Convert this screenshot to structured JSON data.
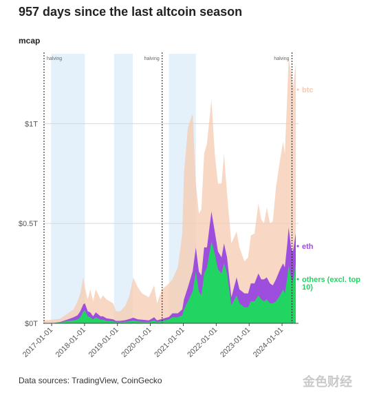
{
  "title": "957 days since the last altcoin season",
  "source": "Data sources: TradingView, CoinGecko",
  "watermark": "金色财经",
  "chart_data": {
    "type": "area",
    "title": "957 days since the last altcoin season",
    "ylabel": "mcap",
    "ylim": [
      0,
      1.35
    ],
    "y_ticks": [
      {
        "v": 0,
        "label": "$0T"
      },
      {
        "v": 0.5,
        "label": "$0.5T"
      },
      {
        "v": 1,
        "label": "$1T"
      }
    ],
    "x_ticks": [
      "2017-01-01",
      "2018-01-01",
      "2019-01-01",
      "2020-01-01",
      "2021-01-01",
      "2022-01-01",
      "2023-01-01",
      "2024-01-01"
    ],
    "xlim": [
      "2016-10-01",
      "2024-06-01"
    ],
    "grid": "horizontal",
    "stacking": "cumulative",
    "altcoin_seasons": [
      {
        "start": "2016-12-25",
        "end": "2018-01-05"
      },
      {
        "start": "2018-11-25",
        "end": "2019-06-20"
      },
      {
        "start": "2020-07-25",
        "end": "2021-05-20"
      }
    ],
    "halvings": [
      {
        "date": "2016-07-09",
        "label": "halving"
      },
      {
        "date": "2020-05-11",
        "label": "halving"
      },
      {
        "date": "2024-04-20",
        "label": "halving"
      }
    ],
    "series": [
      {
        "name": "btc",
        "color": "#f6c9b0",
        "points": [
          [
            "2016-10-01",
            0.014
          ],
          [
            "2017-01-01",
            0.018
          ],
          [
            "2017-04-01",
            0.022
          ],
          [
            "2017-07-01",
            0.05
          ],
          [
            "2017-09-01",
            0.07
          ],
          [
            "2017-10-15",
            0.11
          ],
          [
            "2017-11-15",
            0.15
          ],
          [
            "2017-12-18",
            0.23
          ],
          [
            "2018-01-05",
            0.18
          ],
          [
            "2018-02-06",
            0.12
          ],
          [
            "2018-03-05",
            0.17
          ],
          [
            "2018-04-06",
            0.11
          ],
          [
            "2018-05-05",
            0.17
          ],
          [
            "2018-06-28",
            0.12
          ],
          [
            "2018-07-25",
            0.14
          ],
          [
            "2018-09-01",
            0.12
          ],
          [
            "2018-11-15",
            0.1
          ],
          [
            "2018-12-15",
            0.06
          ],
          [
            "2019-02-01",
            0.06
          ],
          [
            "2019-04-01",
            0.09
          ],
          [
            "2019-05-15",
            0.14
          ],
          [
            "2019-06-26",
            0.23
          ],
          [
            "2019-08-15",
            0.18
          ],
          [
            "2019-10-01",
            0.15
          ],
          [
            "2019-12-15",
            0.13
          ],
          [
            "2020-02-12",
            0.19
          ],
          [
            "2020-03-15",
            0.1
          ],
          [
            "2020-05-10",
            0.17
          ],
          [
            "2020-07-25",
            0.2
          ],
          [
            "2020-09-01",
            0.22
          ],
          [
            "2020-11-01",
            0.28
          ],
          [
            "2020-12-20",
            0.45
          ],
          [
            "2021-01-08",
            0.75
          ],
          [
            "2021-02-20",
            0.98
          ],
          [
            "2021-04-14",
            1.05
          ],
          [
            "2021-05-20",
            0.7
          ],
          [
            "2021-06-22",
            0.55
          ],
          [
            "2021-07-20",
            0.57
          ],
          [
            "2021-08-20",
            0.85
          ],
          [
            "2021-09-20",
            0.9
          ],
          [
            "2021-11-09",
            1.12
          ],
          [
            "2021-12-15",
            0.85
          ],
          [
            "2022-01-20",
            0.7
          ],
          [
            "2022-03-01",
            0.7
          ],
          [
            "2022-03-28",
            0.85
          ],
          [
            "2022-05-01",
            0.65
          ],
          [
            "2022-06-18",
            0.4
          ],
          [
            "2022-08-15",
            0.46
          ],
          [
            "2022-09-15",
            0.38
          ],
          [
            "2022-11-10",
            0.31
          ],
          [
            "2022-12-20",
            0.33
          ],
          [
            "2023-01-20",
            0.44
          ],
          [
            "2023-03-01",
            0.45
          ],
          [
            "2023-04-14",
            0.6
          ],
          [
            "2023-05-15",
            0.52
          ],
          [
            "2023-06-15",
            0.5
          ],
          [
            "2023-07-15",
            0.58
          ],
          [
            "2023-08-20",
            0.5
          ],
          [
            "2023-09-20",
            0.51
          ],
          [
            "2023-10-25",
            0.68
          ],
          [
            "2023-12-10",
            0.82
          ],
          [
            "2024-01-12",
            0.91
          ],
          [
            "2024-02-01",
            0.85
          ],
          [
            "2024-02-28",
            1.15
          ],
          [
            "2024-03-14",
            1.33
          ],
          [
            "2024-04-13",
            1.25
          ],
          [
            "2024-05-01",
            1.18
          ],
          [
            "2024-06-01",
            1.3
          ]
        ]
      },
      {
        "name": "eth",
        "color": "#9d4edd",
        "points": [
          [
            "2016-10-01",
            0.0
          ],
          [
            "2017-01-01",
            0.0
          ],
          [
            "2017-04-01",
            0.006
          ],
          [
            "2017-07-01",
            0.02
          ],
          [
            "2017-09-01",
            0.03
          ],
          [
            "2017-10-15",
            0.04
          ],
          [
            "2017-11-15",
            0.06
          ],
          [
            "2017-12-18",
            0.095
          ],
          [
            "2018-01-05",
            0.1
          ],
          [
            "2018-02-06",
            0.06
          ],
          [
            "2018-03-05",
            0.055
          ],
          [
            "2018-04-06",
            0.035
          ],
          [
            "2018-05-05",
            0.055
          ],
          [
            "2018-06-28",
            0.035
          ],
          [
            "2018-07-25",
            0.035
          ],
          [
            "2018-09-01",
            0.025
          ],
          [
            "2018-11-15",
            0.02
          ],
          [
            "2018-12-15",
            0.012
          ],
          [
            "2019-02-01",
            0.012
          ],
          [
            "2019-04-01",
            0.016
          ],
          [
            "2019-05-15",
            0.022
          ],
          [
            "2019-06-26",
            0.028
          ],
          [
            "2019-08-15",
            0.02
          ],
          [
            "2019-10-01",
            0.018
          ],
          [
            "2019-12-15",
            0.015
          ],
          [
            "2020-02-12",
            0.03
          ],
          [
            "2020-03-15",
            0.015
          ],
          [
            "2020-05-10",
            0.022
          ],
          [
            "2020-07-25",
            0.032
          ],
          [
            "2020-09-01",
            0.05
          ],
          [
            "2020-11-01",
            0.05
          ],
          [
            "2020-12-20",
            0.07
          ],
          [
            "2021-01-08",
            0.12
          ],
          [
            "2021-02-20",
            0.18
          ],
          [
            "2021-04-14",
            0.26
          ],
          [
            "2021-05-20",
            0.38
          ],
          [
            "2021-06-22",
            0.26
          ],
          [
            "2021-07-20",
            0.24
          ],
          [
            "2021-08-20",
            0.38
          ],
          [
            "2021-09-20",
            0.38
          ],
          [
            "2021-11-09",
            0.56
          ],
          [
            "2021-12-15",
            0.46
          ],
          [
            "2022-01-20",
            0.36
          ],
          [
            "2022-03-01",
            0.33
          ],
          [
            "2022-03-28",
            0.4
          ],
          [
            "2022-05-01",
            0.33
          ],
          [
            "2022-06-18",
            0.13
          ],
          [
            "2022-08-15",
            0.23
          ],
          [
            "2022-09-15",
            0.17
          ],
          [
            "2022-11-10",
            0.15
          ],
          [
            "2022-12-20",
            0.15
          ],
          [
            "2023-01-20",
            0.2
          ],
          [
            "2023-03-01",
            0.2
          ],
          [
            "2023-04-14",
            0.25
          ],
          [
            "2023-05-15",
            0.22
          ],
          [
            "2023-06-15",
            0.22
          ],
          [
            "2023-07-15",
            0.23
          ],
          [
            "2023-08-20",
            0.2
          ],
          [
            "2023-09-20",
            0.19
          ],
          [
            "2023-10-25",
            0.22
          ],
          [
            "2023-12-10",
            0.27
          ],
          [
            "2024-01-12",
            0.3
          ],
          [
            "2024-02-01",
            0.28
          ],
          [
            "2024-02-28",
            0.4
          ],
          [
            "2024-03-14",
            0.48
          ],
          [
            "2024-04-13",
            0.37
          ],
          [
            "2024-05-01",
            0.36
          ],
          [
            "2024-06-01",
            0.45
          ]
        ]
      },
      {
        "name": "others (excl. top 10)",
        "color": "#22d462",
        "points": [
          [
            "2016-10-01",
            0.0
          ],
          [
            "2017-01-01",
            0.0
          ],
          [
            "2017-04-01",
            0.004
          ],
          [
            "2017-07-01",
            0.012
          ],
          [
            "2017-09-01",
            0.015
          ],
          [
            "2017-10-15",
            0.02
          ],
          [
            "2017-11-15",
            0.03
          ],
          [
            "2017-12-18",
            0.06
          ],
          [
            "2018-01-05",
            0.065
          ],
          [
            "2018-02-06",
            0.035
          ],
          [
            "2018-03-05",
            0.03
          ],
          [
            "2018-04-06",
            0.02
          ],
          [
            "2018-05-05",
            0.03
          ],
          [
            "2018-06-28",
            0.018
          ],
          [
            "2018-07-25",
            0.018
          ],
          [
            "2018-09-01",
            0.012
          ],
          [
            "2018-11-15",
            0.01
          ],
          [
            "2018-12-15",
            0.006
          ],
          [
            "2019-02-01",
            0.006
          ],
          [
            "2019-04-01",
            0.008
          ],
          [
            "2019-05-15",
            0.01
          ],
          [
            "2019-06-26",
            0.014
          ],
          [
            "2019-08-15",
            0.01
          ],
          [
            "2019-10-01",
            0.008
          ],
          [
            "2019-12-15",
            0.007
          ],
          [
            "2020-02-12",
            0.015
          ],
          [
            "2020-03-15",
            0.007
          ],
          [
            "2020-05-10",
            0.011
          ],
          [
            "2020-07-25",
            0.02
          ],
          [
            "2020-09-01",
            0.03
          ],
          [
            "2020-11-01",
            0.03
          ],
          [
            "2020-12-20",
            0.04
          ],
          [
            "2021-01-08",
            0.07
          ],
          [
            "2021-02-20",
            0.11
          ],
          [
            "2021-04-14",
            0.16
          ],
          [
            "2021-05-20",
            0.26
          ],
          [
            "2021-06-22",
            0.16
          ],
          [
            "2021-07-20",
            0.14
          ],
          [
            "2021-08-20",
            0.25
          ],
          [
            "2021-09-20",
            0.28
          ],
          [
            "2021-11-09",
            0.41
          ],
          [
            "2021-12-15",
            0.35
          ],
          [
            "2022-01-20",
            0.27
          ],
          [
            "2022-03-01",
            0.25
          ],
          [
            "2022-03-28",
            0.3
          ],
          [
            "2022-05-01",
            0.25
          ],
          [
            "2022-06-18",
            0.09
          ],
          [
            "2022-08-15",
            0.14
          ],
          [
            "2022-09-15",
            0.1
          ],
          [
            "2022-11-10",
            0.08
          ],
          [
            "2022-12-20",
            0.08
          ],
          [
            "2023-01-20",
            0.11
          ],
          [
            "2023-03-01",
            0.11
          ],
          [
            "2023-04-14",
            0.14
          ],
          [
            "2023-05-15",
            0.12
          ],
          [
            "2023-06-15",
            0.11
          ],
          [
            "2023-07-15",
            0.12
          ],
          [
            "2023-08-20",
            0.1
          ],
          [
            "2023-09-20",
            0.1
          ],
          [
            "2023-10-25",
            0.11
          ],
          [
            "2023-12-10",
            0.14
          ],
          [
            "2024-01-12",
            0.17
          ],
          [
            "2024-02-01",
            0.15
          ],
          [
            "2024-02-28",
            0.23
          ],
          [
            "2024-03-14",
            0.29
          ],
          [
            "2024-04-13",
            0.22
          ],
          [
            "2024-05-01",
            0.21
          ],
          [
            "2024-06-01",
            0.3
          ]
        ]
      }
    ]
  }
}
